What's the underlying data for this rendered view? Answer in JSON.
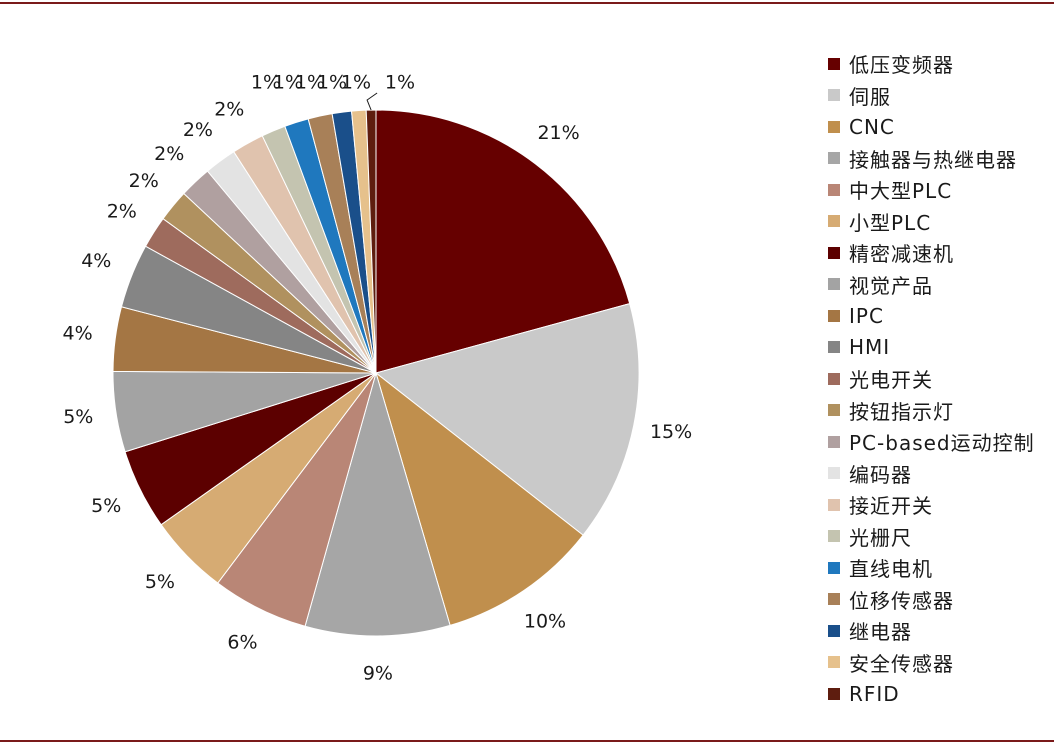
{
  "chart_data": {
    "type": "pie",
    "legend_position": "right",
    "slices": [
      {
        "label": "低压变频器",
        "value": 21,
        "display": "21%",
        "color": "#660000"
      },
      {
        "label": "伺服",
        "value": 15,
        "display": "15%",
        "color": "#c9c9c9"
      },
      {
        "label": "CNC",
        "value": 10,
        "display": "10%",
        "color": "#c08f4d"
      },
      {
        "label": "接触器与热继电器",
        "value": 9,
        "display": "9%",
        "color": "#a6a6a6"
      },
      {
        "label": "中大型PLC",
        "value": 6,
        "display": "6%",
        "color": "#b98676"
      },
      {
        "label": "小型PLC",
        "value": 5,
        "display": "5%",
        "color": "#d6ab73"
      },
      {
        "label": "精密减速机",
        "value": 5,
        "display": "5%",
        "color": "#5c0000"
      },
      {
        "label": "视觉产品",
        "value": 5,
        "display": "5%",
        "color": "#a3a3a3"
      },
      {
        "label": "IPC",
        "value": 4,
        "display": "4%",
        "color": "#a47644"
      },
      {
        "label": "HMI",
        "value": 4,
        "display": "4%",
        "color": "#858585"
      },
      {
        "label": "光电开关",
        "value": 2,
        "display": "2%",
        "color": "#9e6b5d"
      },
      {
        "label": "按钮指示灯",
        "value": 2,
        "display": "2%",
        "color": "#b0915f"
      },
      {
        "label": "PC-based运动控制",
        "value": 2,
        "display": "2%",
        "color": "#b0a0a0"
      },
      {
        "label": "编码器",
        "value": 2,
        "display": "2%",
        "color": "#e3e3e3"
      },
      {
        "label": "接近开关",
        "value": 2,
        "display": "2%",
        "color": "#e0c3ae"
      },
      {
        "label": "光栅尺",
        "value": 1.5,
        "display": "1%",
        "color": "#c4c4b0"
      },
      {
        "label": "直线电机",
        "value": 1.5,
        "display": "1%",
        "color": "#1f78be"
      },
      {
        "label": "位移传感器",
        "value": 1.5,
        "display": "1%",
        "color": "#a88058"
      },
      {
        "label": "继电器",
        "value": 1.2,
        "display": "1%",
        "color": "#1a4f8a"
      },
      {
        "label": "安全传感器",
        "value": 0.9,
        "display": "1%",
        "color": "#e6c18c"
      },
      {
        "label": "RFID",
        "value": 0.6,
        "display": "1%",
        "color": "#5e1d0f"
      }
    ]
  }
}
